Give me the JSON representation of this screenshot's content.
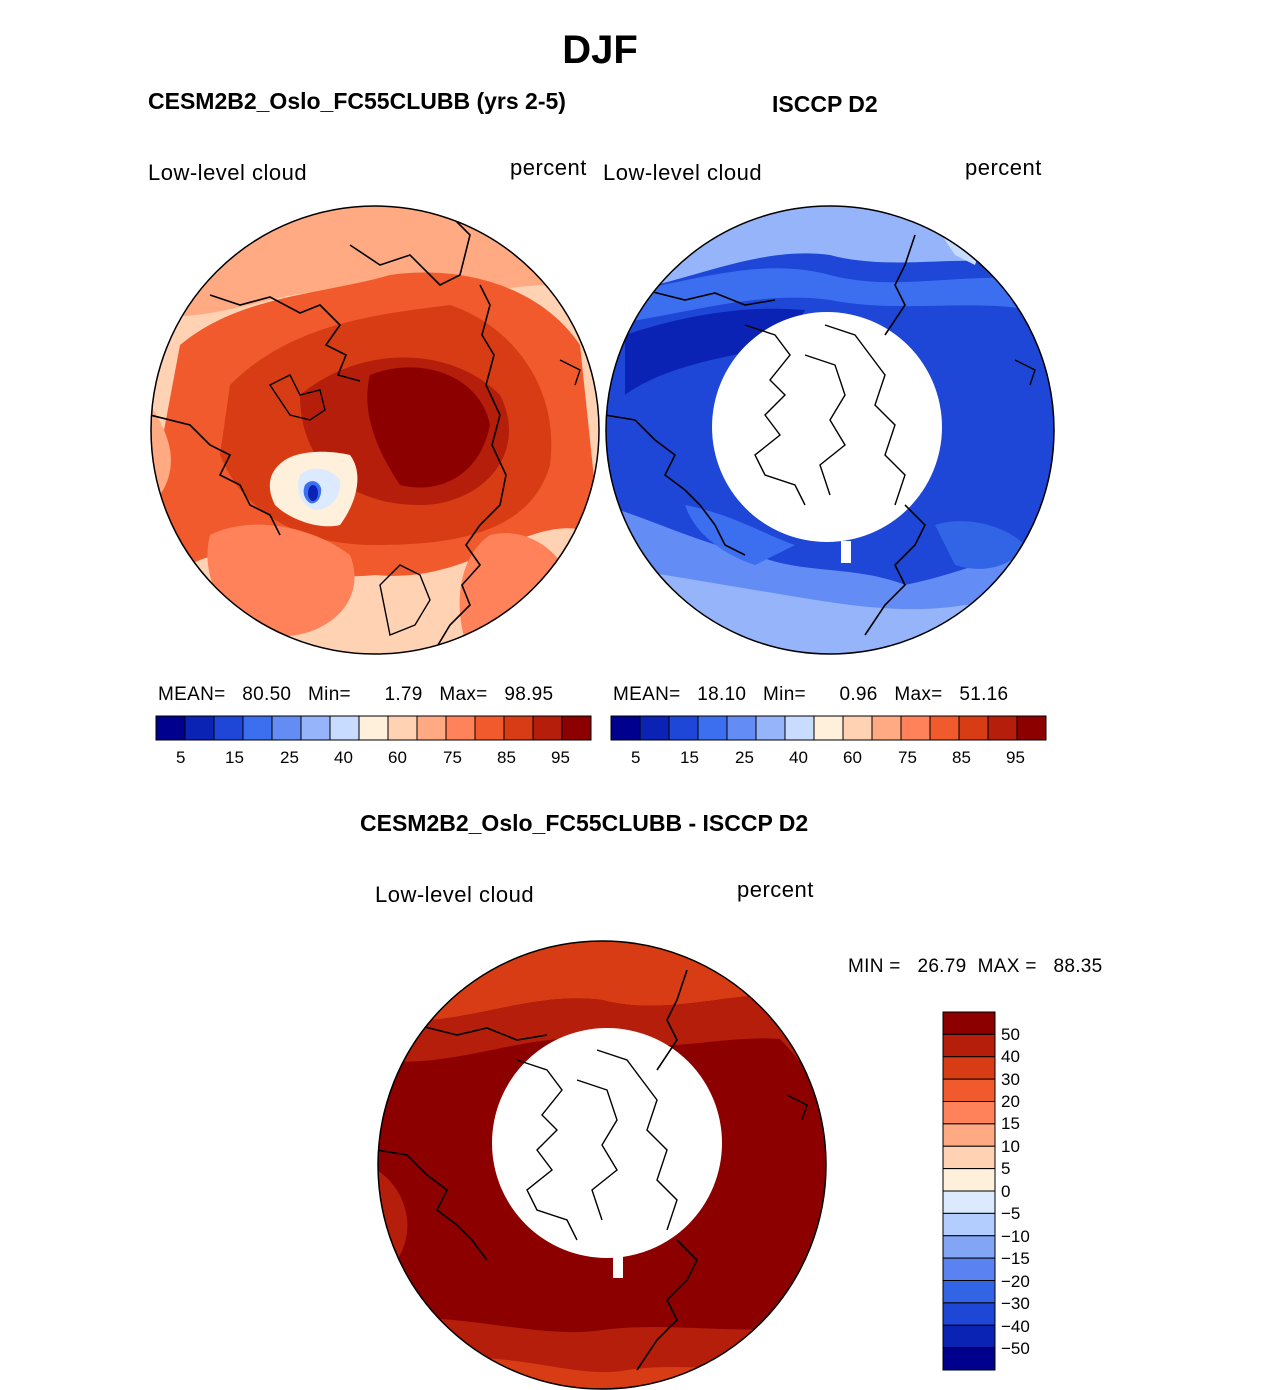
{
  "figure": {
    "title": "DJF"
  },
  "panels": [
    {
      "id": "model",
      "title": "CESM2B2_Oslo_FC55CLUBB (yrs 2-5)",
      "variable": "Low-level cloud",
      "units": "percent",
      "stats": {
        "mean_label": "MEAN=",
        "mean": "80.50",
        "min_label": "Min=",
        "min": "1.79",
        "max_label": "Max=",
        "max": "98.95"
      }
    },
    {
      "id": "obs",
      "title": "ISCCP D2",
      "variable": "Low-level cloud",
      "units": "percent",
      "stats": {
        "mean_label": "MEAN=",
        "mean": "18.10",
        "min_label": "Min=",
        "min": "0.96",
        "max_label": "Max=",
        "max": "51.16"
      }
    },
    {
      "id": "diff",
      "title": "CESM2B2_Oslo_FC55CLUBB - ISCCP D2",
      "variable": "Low-level cloud",
      "units": "percent",
      "stats": {
        "min_label": "MIN =",
        "min": "26.79",
        "max_label": "MAX =",
        "max": "88.35"
      }
    }
  ],
  "colorbar_abs": {
    "colors": [
      "#00008f",
      "#0a23b4",
      "#1e46d7",
      "#3c6ef0",
      "#648cf5",
      "#96b4fa",
      "#c8dcff",
      "#fff0dc",
      "#ffd2b4",
      "#ffaa82",
      "#ff825a",
      "#f05a2d",
      "#d73c14",
      "#b41e0a",
      "#8c0000"
    ],
    "labels": [
      "5",
      "15",
      "25",
      "40",
      "60",
      "75",
      "85",
      "95"
    ]
  },
  "colorbar_diff": {
    "colors": [
      "#8c0000",
      "#b41e0a",
      "#d73c14",
      "#f05a2d",
      "#ff825a",
      "#ffaa82",
      "#ffd2b4",
      "#fff0dc",
      "#dceaff",
      "#b4cdff",
      "#82a5f5",
      "#5a82f0",
      "#3264e6",
      "#1e46d7",
      "#0a23b4",
      "#00008f"
    ],
    "labels": [
      "50",
      "40",
      "30",
      "20",
      "15",
      "10",
      "5",
      "0",
      "−5",
      "−10",
      "−15",
      "−20",
      "−30",
      "−40",
      "−50"
    ]
  }
}
